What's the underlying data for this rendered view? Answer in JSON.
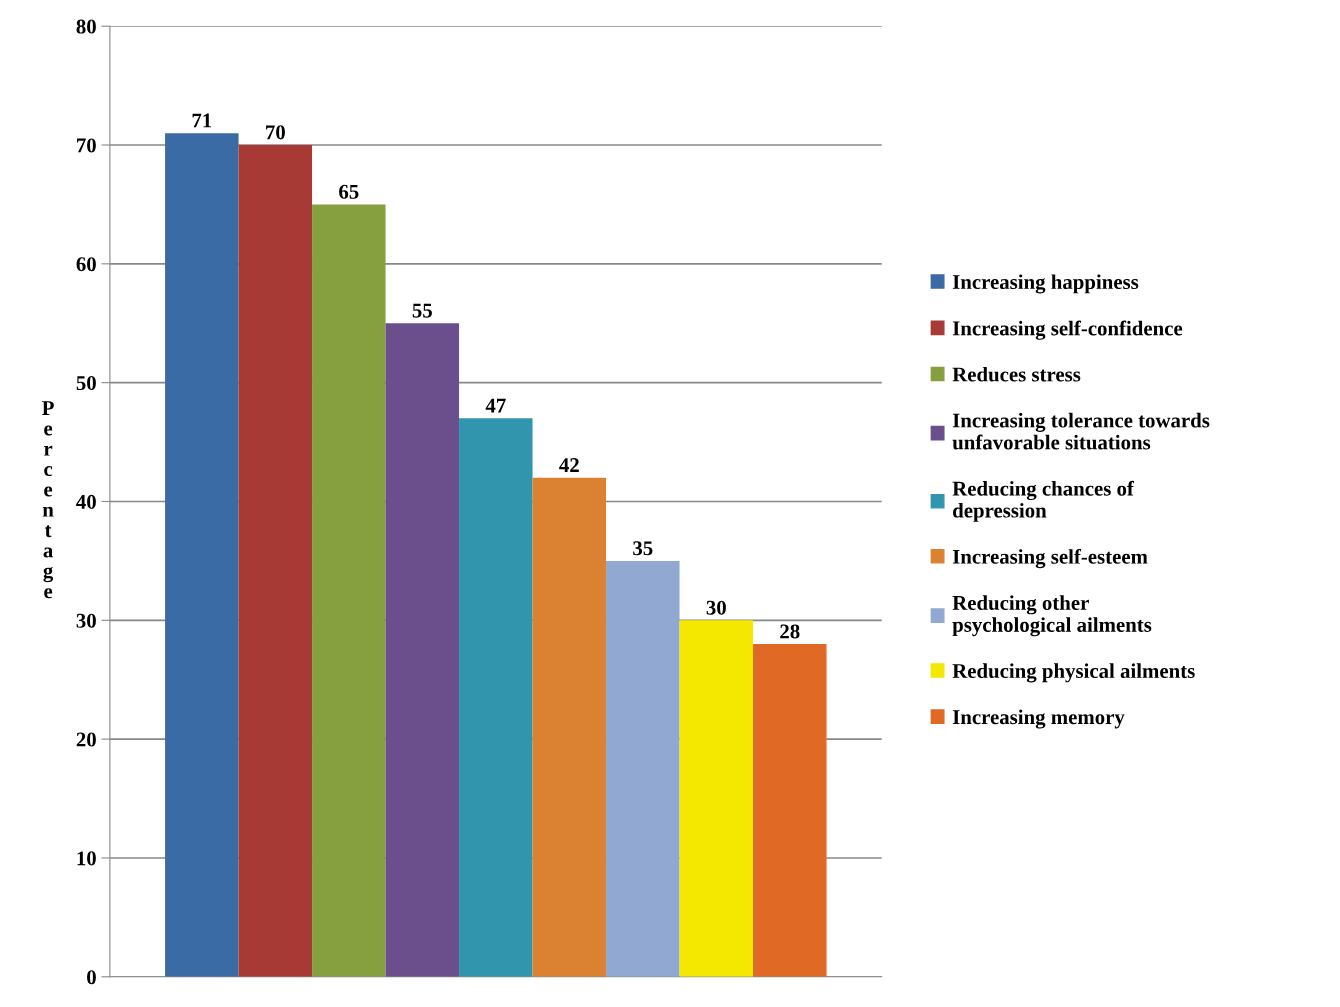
{
  "chart_data": {
    "type": "bar",
    "ylabel": "Percentage",
    "categories": [
      null
    ],
    "series": [
      {
        "name": "Increasing happiness",
        "color": "#3a6ba5",
        "values": [
          71
        ]
      },
      {
        "name": "Increasing self-confidence",
        "color": "#a83a36",
        "values": [
          70
        ]
      },
      {
        "name": "Reduces stress",
        "color": "#86a03f",
        "values": [
          65
        ]
      },
      {
        "name": "Increasing tolerance towards\nunfavorable situations",
        "color": "#6b4e8c",
        "values": [
          55
        ]
      },
      {
        "name": "Reducing chances of\ndepression",
        "color": "#3196ad",
        "values": [
          47
        ]
      },
      {
        "name": "Increasing self-esteem",
        "color": "#da8231",
        "values": [
          42
        ]
      },
      {
        "name": "Reducing other\npsychological ailments",
        "color": "#91a9d2",
        "values": [
          35
        ]
      },
      {
        "name": "Reducing physical ailments",
        "color": "#f5e800",
        "values": [
          30
        ]
      },
      {
        "name": "Increasing memory",
        "color": "#e06925",
        "values": [
          28
        ]
      }
    ],
    "ylim": [
      0,
      80
    ],
    "yticks": [
      0,
      10,
      20,
      30,
      40,
      50,
      60,
      70,
      80
    ],
    "grid": "y",
    "legend": "right",
    "data_labels": true
  }
}
